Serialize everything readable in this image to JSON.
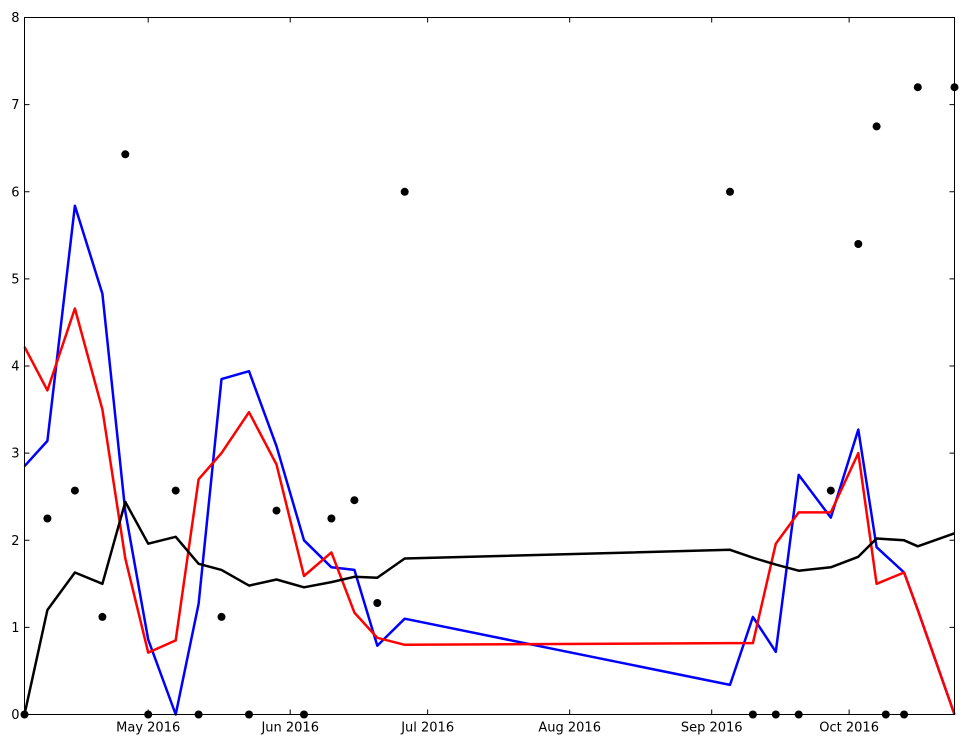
{
  "chart_data": {
    "type": "line",
    "title": "",
    "xlabel": "",
    "ylabel": "",
    "xlim": [
      "2016-04-04",
      "2016-10-24"
    ],
    "ylim": [
      0,
      8
    ],
    "grid": false,
    "x_ticks": [
      {
        "date": "2016-05-01",
        "label": "May 2016"
      },
      {
        "date": "2016-06-01",
        "label": "Jun 2016"
      },
      {
        "date": "2016-07-01",
        "label": "Jul 2016"
      },
      {
        "date": "2016-08-01",
        "label": "Aug 2016"
      },
      {
        "date": "2016-09-01",
        "label": "Sep 2016"
      },
      {
        "date": "2016-10-01",
        "label": "Oct 2016"
      }
    ],
    "y_ticks": [
      0,
      1,
      2,
      3,
      4,
      5,
      6,
      7,
      8
    ],
    "series": [
      {
        "color": "#0000ff",
        "style": "line",
        "x": [
          "2016-04-04",
          "2016-04-09",
          "2016-04-15",
          "2016-04-21",
          "2016-04-26",
          "2016-05-01",
          "2016-05-07",
          "2016-05-12",
          "2016-05-17",
          "2016-05-23",
          "2016-05-29",
          "2016-06-04",
          "2016-06-10",
          "2016-06-15",
          "2016-06-20",
          "2016-06-26",
          "2016-09-05",
          "2016-09-10",
          "2016-09-15",
          "2016-09-20",
          "2016-09-27",
          "2016-10-03",
          "2016-10-07",
          "2016-10-13",
          "2016-10-16",
          "2016-10-24"
        ],
        "y": [
          2.85,
          3.14,
          5.84,
          4.83,
          2.33,
          0.86,
          0.0,
          1.27,
          3.85,
          3.94,
          3.08,
          2.0,
          1.69,
          1.66,
          0.79,
          1.1,
          0.34,
          1.12,
          0.72,
          2.75,
          2.26,
          3.27,
          1.92,
          1.63,
          1.2,
          0.0
        ]
      },
      {
        "color": "#ff0000",
        "style": "line",
        "x": [
          "2016-04-04",
          "2016-04-09",
          "2016-04-15",
          "2016-04-21",
          "2016-04-26",
          "2016-05-01",
          "2016-05-07",
          "2016-05-12",
          "2016-05-17",
          "2016-05-23",
          "2016-05-29",
          "2016-06-04",
          "2016-06-10",
          "2016-06-15",
          "2016-06-20",
          "2016-06-26",
          "2016-09-05",
          "2016-09-10",
          "2016-09-15",
          "2016-09-20",
          "2016-09-27",
          "2016-10-03",
          "2016-10-07",
          "2016-10-13",
          "2016-10-16",
          "2016-10-24"
        ],
        "y": [
          4.22,
          3.72,
          4.66,
          3.5,
          1.79,
          0.71,
          0.85,
          2.7,
          3.0,
          3.47,
          2.87,
          1.59,
          1.86,
          1.17,
          0.88,
          0.8,
          0.82,
          0.82,
          1.96,
          2.32,
          2.32,
          3.0,
          1.5,
          1.63,
          1.2,
          0.0
        ]
      },
      {
        "color": "#000000",
        "style": "line",
        "x": [
          "2016-04-04",
          "2016-04-09",
          "2016-04-15",
          "2016-04-21",
          "2016-04-26",
          "2016-05-01",
          "2016-05-07",
          "2016-05-12",
          "2016-05-17",
          "2016-05-23",
          "2016-05-29",
          "2016-06-04",
          "2016-06-10",
          "2016-06-15",
          "2016-06-20",
          "2016-06-26",
          "2016-09-05",
          "2016-09-10",
          "2016-09-15",
          "2016-09-20",
          "2016-09-27",
          "2016-10-03",
          "2016-10-07",
          "2016-10-13",
          "2016-10-16",
          "2016-10-24"
        ],
        "y": [
          0.0,
          1.2,
          1.63,
          1.5,
          2.44,
          1.96,
          2.04,
          1.73,
          1.66,
          1.48,
          1.55,
          1.46,
          1.52,
          1.58,
          1.57,
          1.79,
          1.89,
          1.8,
          1.72,
          1.65,
          1.69,
          1.81,
          2.02,
          2.0,
          1.93,
          2.08
        ]
      },
      {
        "color": "#000000",
        "style": "scatter",
        "x": [
          "2016-04-04",
          "2016-04-09",
          "2016-04-15",
          "2016-04-21",
          "2016-04-26",
          "2016-05-01",
          "2016-05-07",
          "2016-05-12",
          "2016-05-17",
          "2016-05-23",
          "2016-05-29",
          "2016-06-04",
          "2016-06-10",
          "2016-06-15",
          "2016-06-20",
          "2016-06-26",
          "2016-09-05",
          "2016-09-10",
          "2016-09-15",
          "2016-09-20",
          "2016-09-27",
          "2016-10-03",
          "2016-10-07",
          "2016-10-09",
          "2016-10-13",
          "2016-10-16",
          "2016-10-24"
        ],
        "y": [
          0.0,
          2.25,
          2.57,
          1.12,
          6.43,
          0.0,
          2.57,
          0.0,
          1.12,
          0.0,
          2.34,
          0.0,
          2.25,
          2.46,
          1.28,
          6.0,
          6.0,
          0.0,
          0.0,
          0.0,
          2.57,
          5.4,
          6.75,
          0.0,
          0.0,
          7.2,
          7.2
        ]
      }
    ]
  }
}
